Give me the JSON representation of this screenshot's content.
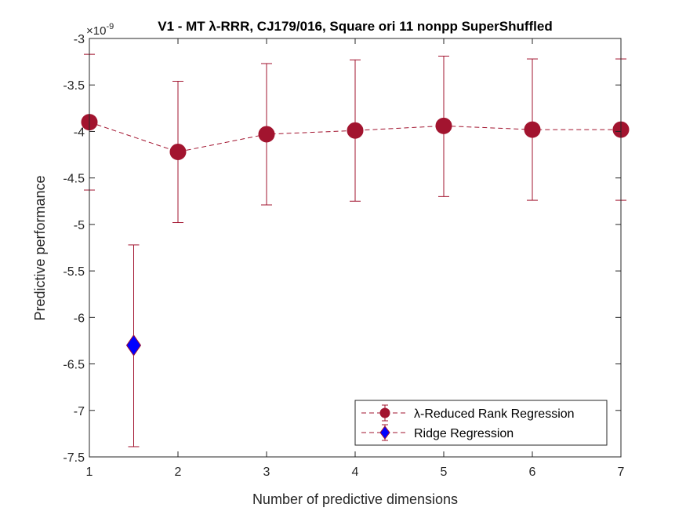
{
  "chart_data": {
    "type": "scatter",
    "title": "V1 - MT λ-RRR, CJ179/016, Square ori 11 nonpp  SuperShuffled",
    "xlabel": "Number of predictive dimensions",
    "ylabel": "Predictive performance",
    "exponent_label": "×10",
    "exponent_power": "-9",
    "xlim": [
      1,
      7
    ],
    "ylim": [
      -7.5,
      -3
    ],
    "xticks": [
      "1",
      "2",
      "3",
      "4",
      "5",
      "6",
      "7"
    ],
    "yticks": [
      "-3",
      "-3.5",
      "-4",
      "-4.5",
      "-5",
      "-5.5",
      "-6",
      "-6.5",
      "-7",
      "-7.5"
    ],
    "grid": false,
    "legend_position": "bottom-right",
    "series": [
      {
        "name": "λ-Reduced Rank Regression",
        "marker": "circle",
        "line": "dashed",
        "color": "#A2142F",
        "x": [
          1,
          2,
          3,
          4,
          5,
          6,
          7
        ],
        "y": [
          -3.9,
          -4.22,
          -4.03,
          -3.99,
          -3.94,
          -3.98,
          -3.98
        ],
        "err_low": [
          -4.63,
          -4.98,
          -4.79,
          -4.75,
          -4.7,
          -4.74,
          -4.74
        ],
        "err_high": [
          -3.17,
          -3.46,
          -3.27,
          -3.23,
          -3.19,
          -3.22,
          -3.22
        ]
      },
      {
        "name": "Ridge Regression",
        "marker": "diamond",
        "line": "dashed",
        "color": "#0000FF",
        "edge_color": "#A2142F",
        "x": [
          1.5
        ],
        "y": [
          -6.3
        ],
        "err_low": [
          -7.39
        ],
        "err_high": [
          -5.22
        ]
      }
    ]
  }
}
